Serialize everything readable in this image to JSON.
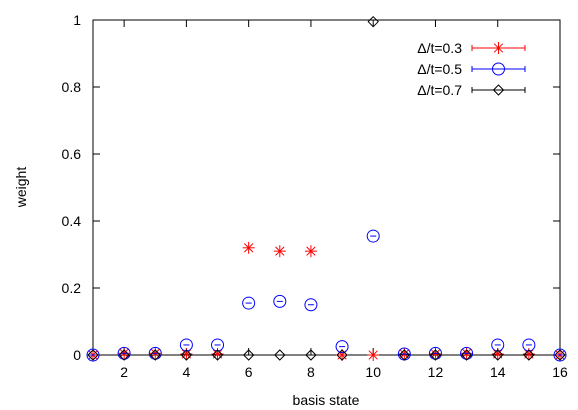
{
  "chart_data": {
    "type": "scatter",
    "xlabel": "basis state",
    "ylabel": "weight",
    "xlim": [
      1,
      16
    ],
    "ylim": [
      0,
      1
    ],
    "xticks": [
      2,
      4,
      6,
      8,
      10,
      12,
      14,
      16
    ],
    "xtick_labels": [
      "2",
      "4",
      "6",
      "8",
      "10",
      "12",
      "14",
      "16"
    ],
    "yticks": [
      0,
      0.2,
      0.4,
      0.6,
      0.8,
      1
    ],
    "ytick_labels": [
      "0",
      "0.2",
      "0.4",
      "0.6",
      "0.8",
      "1"
    ],
    "grid": false,
    "legend_position": "top-right",
    "x": [
      1,
      2,
      3,
      4,
      5,
      6,
      7,
      8,
      9,
      10,
      11,
      12,
      13,
      14,
      15,
      16
    ],
    "series": [
      {
        "name": "Δ/t=0.3",
        "color": "#ff0000",
        "marker": "star",
        "values": [
          0.0,
          0.005,
          0.005,
          0.003,
          0.003,
          0.32,
          0.31,
          0.31,
          0.0,
          0.0,
          0.003,
          0.003,
          0.005,
          0.003,
          0.003,
          0.0
        ]
      },
      {
        "name": "Δ/t=0.5",
        "color": "#0000ff",
        "marker": "circle",
        "values": [
          0.0,
          0.005,
          0.005,
          0.03,
          0.03,
          0.155,
          0.16,
          0.15,
          0.025,
          0.355,
          0.003,
          0.005,
          0.005,
          0.03,
          0.03,
          0.0
        ]
      },
      {
        "name": "Δ/t=0.7",
        "color": "#000000",
        "marker": "diamond",
        "values": [
          0.0,
          0.0,
          0.0,
          0.0,
          0.0,
          0.0,
          0.0,
          0.0,
          0.0,
          0.995,
          0.0,
          0.0,
          0.0,
          0.0,
          0.0,
          0.0
        ]
      }
    ]
  }
}
